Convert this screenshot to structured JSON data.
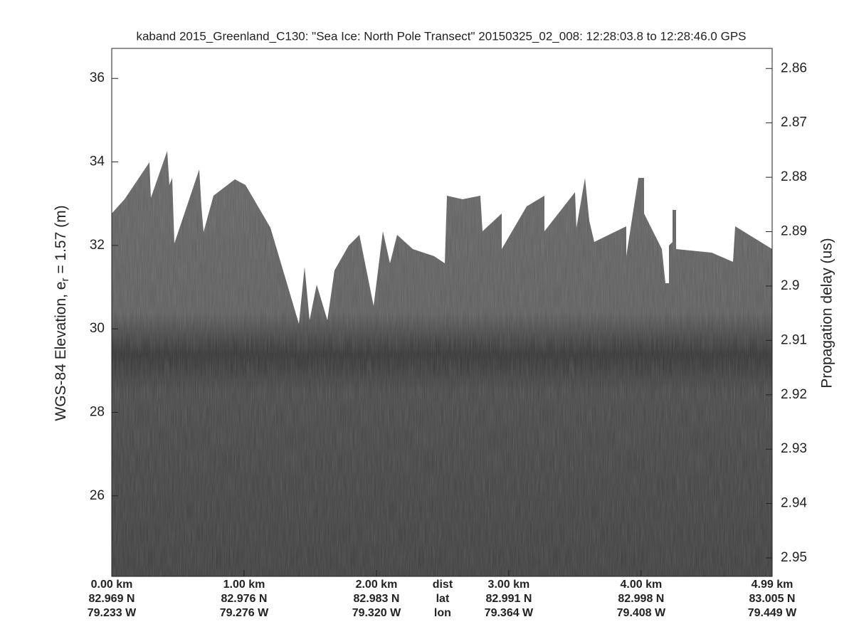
{
  "chart_data": {
    "type": "echogram",
    "title": "kaband 2015_Greenland_C130: \"Sea Ice: North Pole Transect\"  20150325_02_008: 12:28:03.8 to 12:28:46.0 GPS",
    "y_label": "WGS-84 Elevation, e",
    "y_label_sub": "r",
    "y_label_tail": " = 1.57 (m)",
    "y2_label": "Propagation delay (us)",
    "ylim": [
      24.07,
      36.72
    ],
    "yticks": [
      26,
      28,
      30,
      32,
      34,
      36
    ],
    "y2lim": [
      2.8563,
      2.9534
    ],
    "y2ticks": [
      2.86,
      2.87,
      2.88,
      2.89,
      2.9,
      2.91,
      2.92,
      2.93,
      2.94,
      2.95
    ],
    "xlim": [
      0,
      4.99
    ],
    "xticks": [
      {
        "value": 0,
        "label": "0.00 km"
      },
      {
        "value": 1,
        "label": "1.00 km"
      },
      {
        "value": 2,
        "label": "2.00 km"
      },
      {
        "value": 3,
        "label": "3.00 km"
      },
      {
        "value": 4,
        "label": "4.00 km"
      },
      {
        "value": 4.99,
        "label": "4.99 km"
      }
    ],
    "lat_labels": [
      "82.969 N",
      "82.976 N",
      "82.983 N",
      "82.991 N",
      "82.998 N",
      "83.005 N"
    ],
    "lon_labels": [
      "79.233 W",
      "79.276 W",
      "79.320 W",
      "79.364 W",
      "79.408 W",
      "79.449 W"
    ],
    "row_labels": [
      "dist",
      "lat",
      "lon"
    ]
  }
}
